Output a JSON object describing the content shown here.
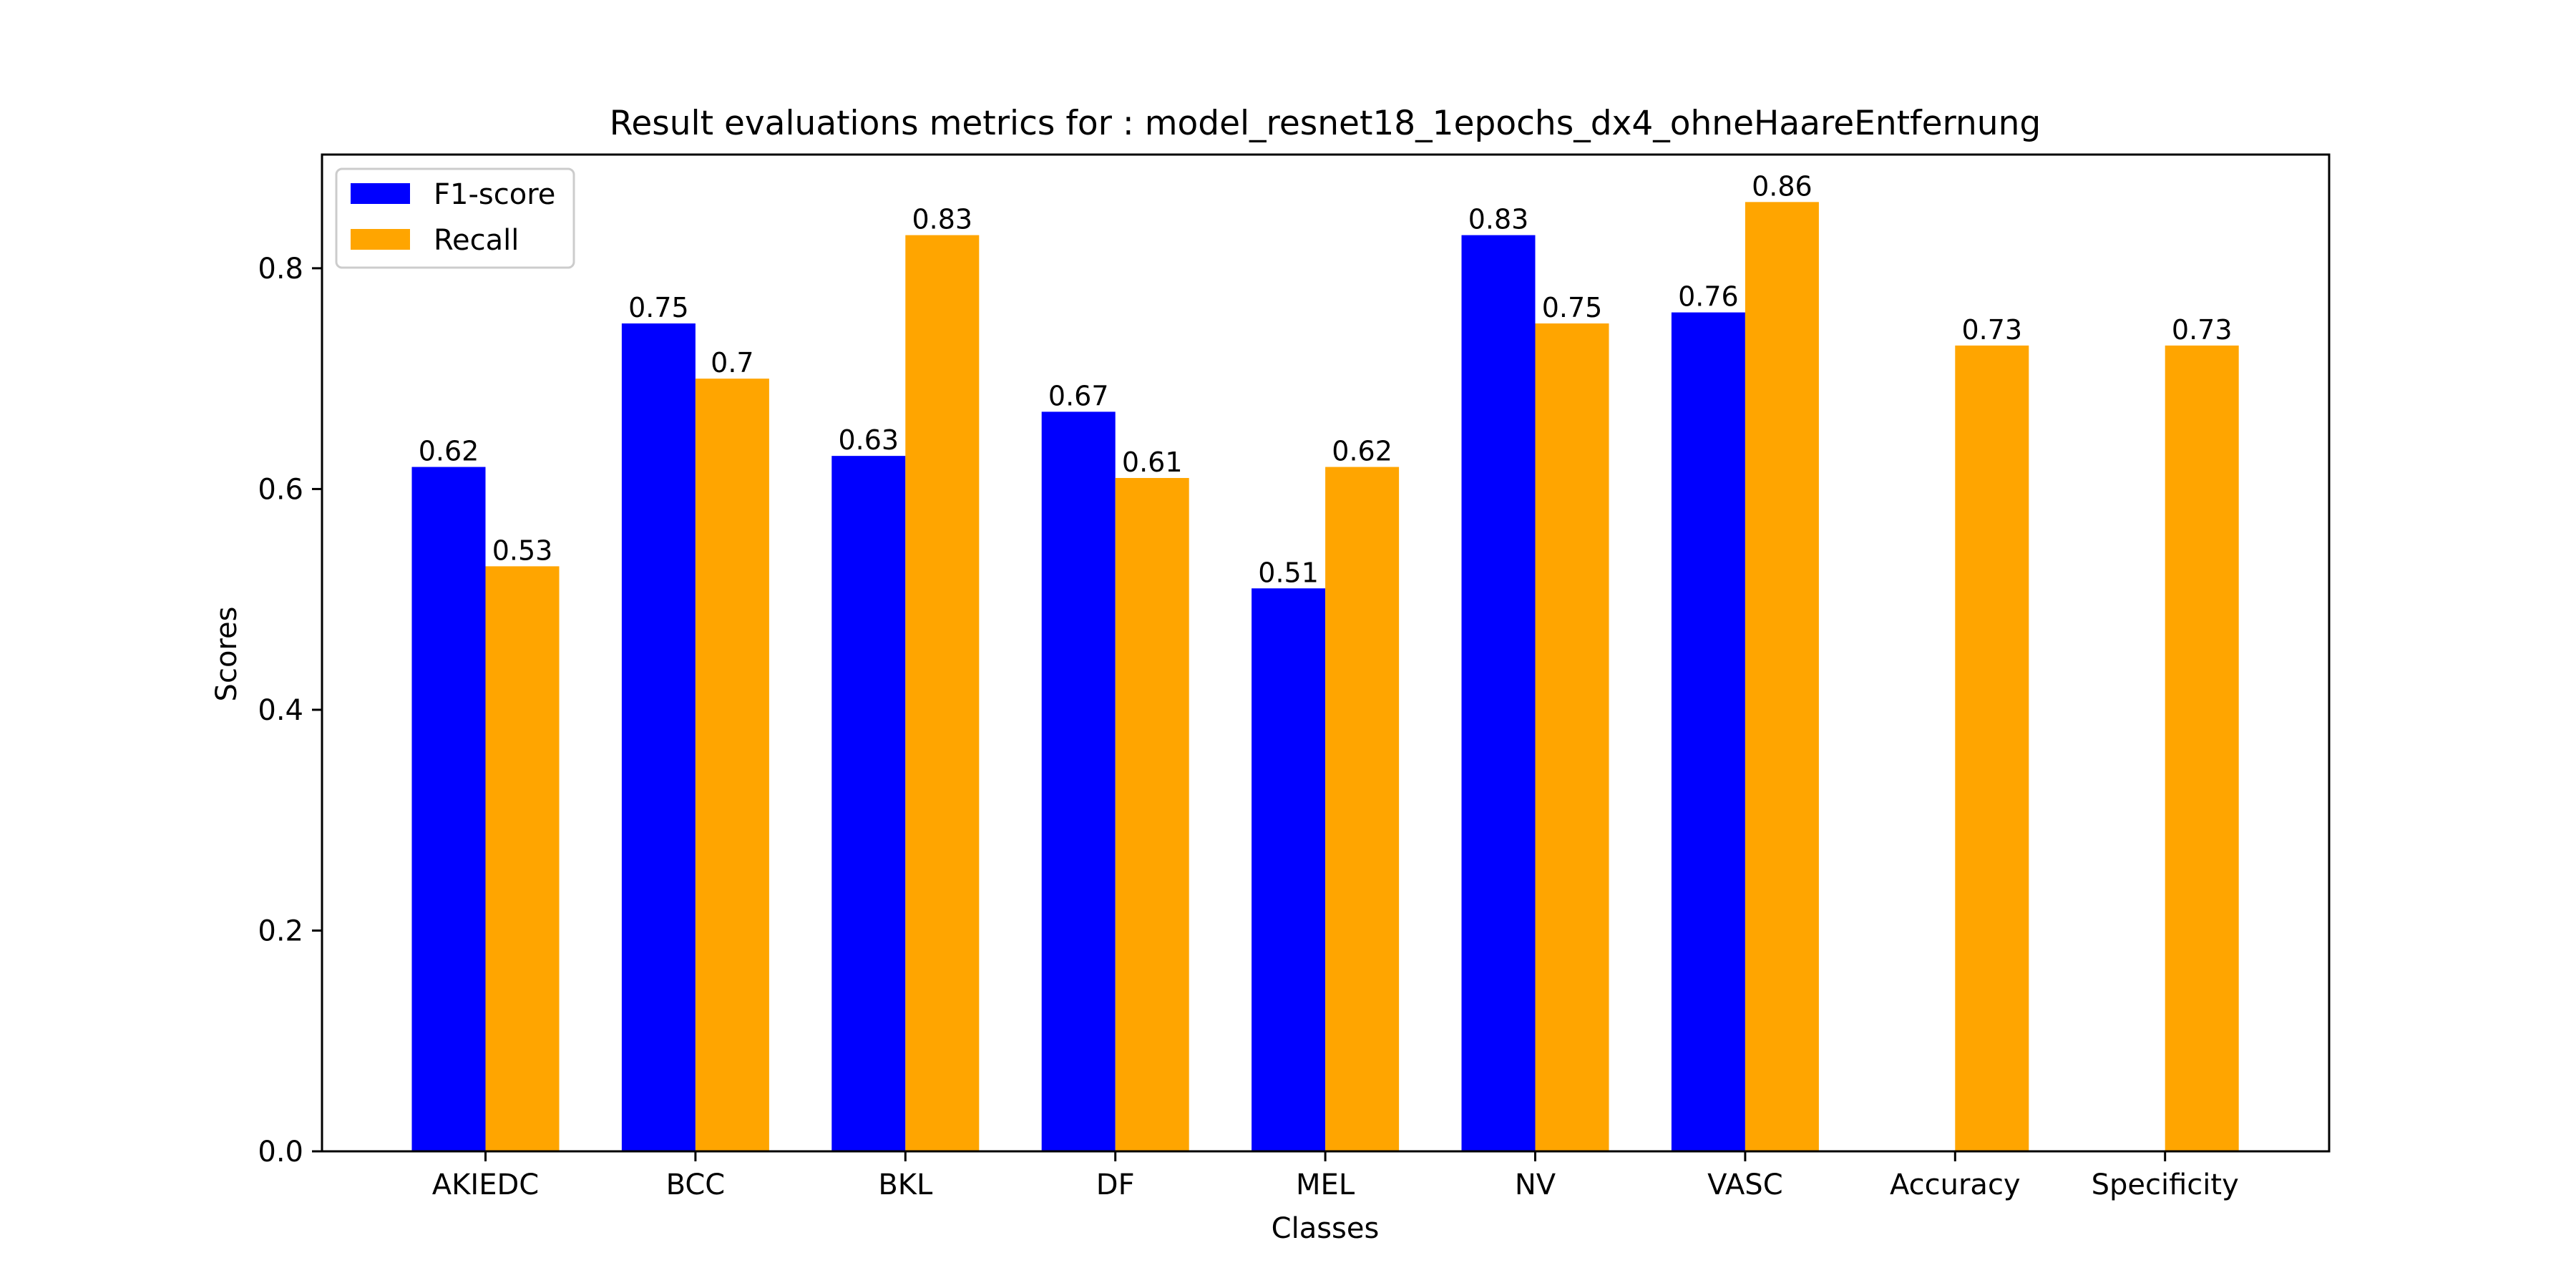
{
  "chart_data": {
    "type": "bar",
    "title": "Result evaluations metrics for : model_resnet18_1epochs_dx4_ohneHaareEntfernung",
    "xlabel": "Classes",
    "ylabel": "Scores",
    "categories": [
      "AKIEDC",
      "BCC",
      "BKL",
      "DF",
      "MEL",
      "NV",
      "VASC",
      "Accuracy",
      "Specificity"
    ],
    "series": [
      {
        "name": "F1-score",
        "color": "#0000ff",
        "values": [
          0.62,
          0.75,
          0.63,
          0.67,
          0.51,
          0.83,
          0.76,
          null,
          null
        ],
        "labels": [
          "0.62",
          "0.75",
          "0.63",
          "0.67",
          "0.51",
          "0.83",
          "0.76",
          null,
          null
        ]
      },
      {
        "name": "Recall",
        "color": "#ffa500",
        "values": [
          0.53,
          0.7,
          0.83,
          0.61,
          0.62,
          0.75,
          0.86,
          0.73,
          0.73
        ],
        "labels": [
          "0.53",
          "0.7",
          "0.83",
          "0.61",
          "0.62",
          "0.75",
          "0.86",
          "0.73",
          "0.73"
        ]
      }
    ],
    "ylim": [
      0,
      0.903
    ],
    "yticks": [
      0.0,
      0.2,
      0.4,
      0.6,
      0.8
    ],
    "ytick_labels": [
      "0.0",
      "0.2",
      "0.4",
      "0.6",
      "0.8"
    ],
    "grid": false,
    "legend": "top-left"
  }
}
